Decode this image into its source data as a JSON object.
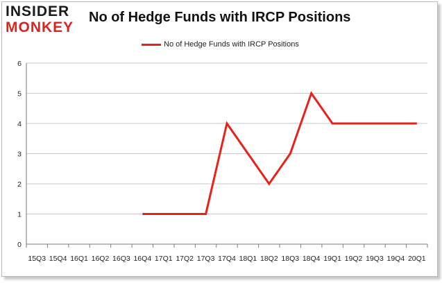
{
  "logo": {
    "top": "INSIDER",
    "bottom": "MONKEY"
  },
  "colors": {
    "line": "#e8211b",
    "grid": "#c8c8c8",
    "axis": "#7a7a7a",
    "logo_accent": "#d9251d"
  },
  "chart_data": {
    "type": "line",
    "title": "No of Hedge Funds with IRCP Positions",
    "xlabel": "",
    "ylabel": "",
    "ylim": [
      0,
      6
    ],
    "yticks": [
      0,
      1,
      2,
      3,
      4,
      5,
      6
    ],
    "grid": true,
    "legend_position": "top-center",
    "categories": [
      "2015Q3",
      "2015Q4",
      "2016Q1",
      "2016Q2",
      "2016Q3",
      "2016Q4",
      "2017Q1",
      "2017Q2",
      "2017Q3",
      "2017Q4",
      "2018Q1",
      "2018Q2",
      "2018Q3",
      "2018Q4",
      "2019Q1",
      "2019Q2",
      "2019Q3",
      "2019Q4",
      "2020Q1"
    ],
    "tick_labels": [
      "15Q3",
      "15Q4",
      "16Q1",
      "16Q2",
      "16Q3",
      "16Q4",
      "17Q1",
      "17Q2",
      "17Q3",
      "17Q4",
      "18Q1",
      "18Q2",
      "18Q3",
      "18Q4",
      "19Q1",
      "19Q2",
      "19Q3",
      "19Q4",
      "20Q1"
    ],
    "series": [
      {
        "name": "No of Hedge Funds with IRCP Positions",
        "values": [
          null,
          null,
          null,
          null,
          null,
          1,
          1,
          1,
          1,
          4,
          3,
          2,
          3,
          5,
          4,
          4,
          4,
          4,
          4
        ]
      }
    ]
  }
}
